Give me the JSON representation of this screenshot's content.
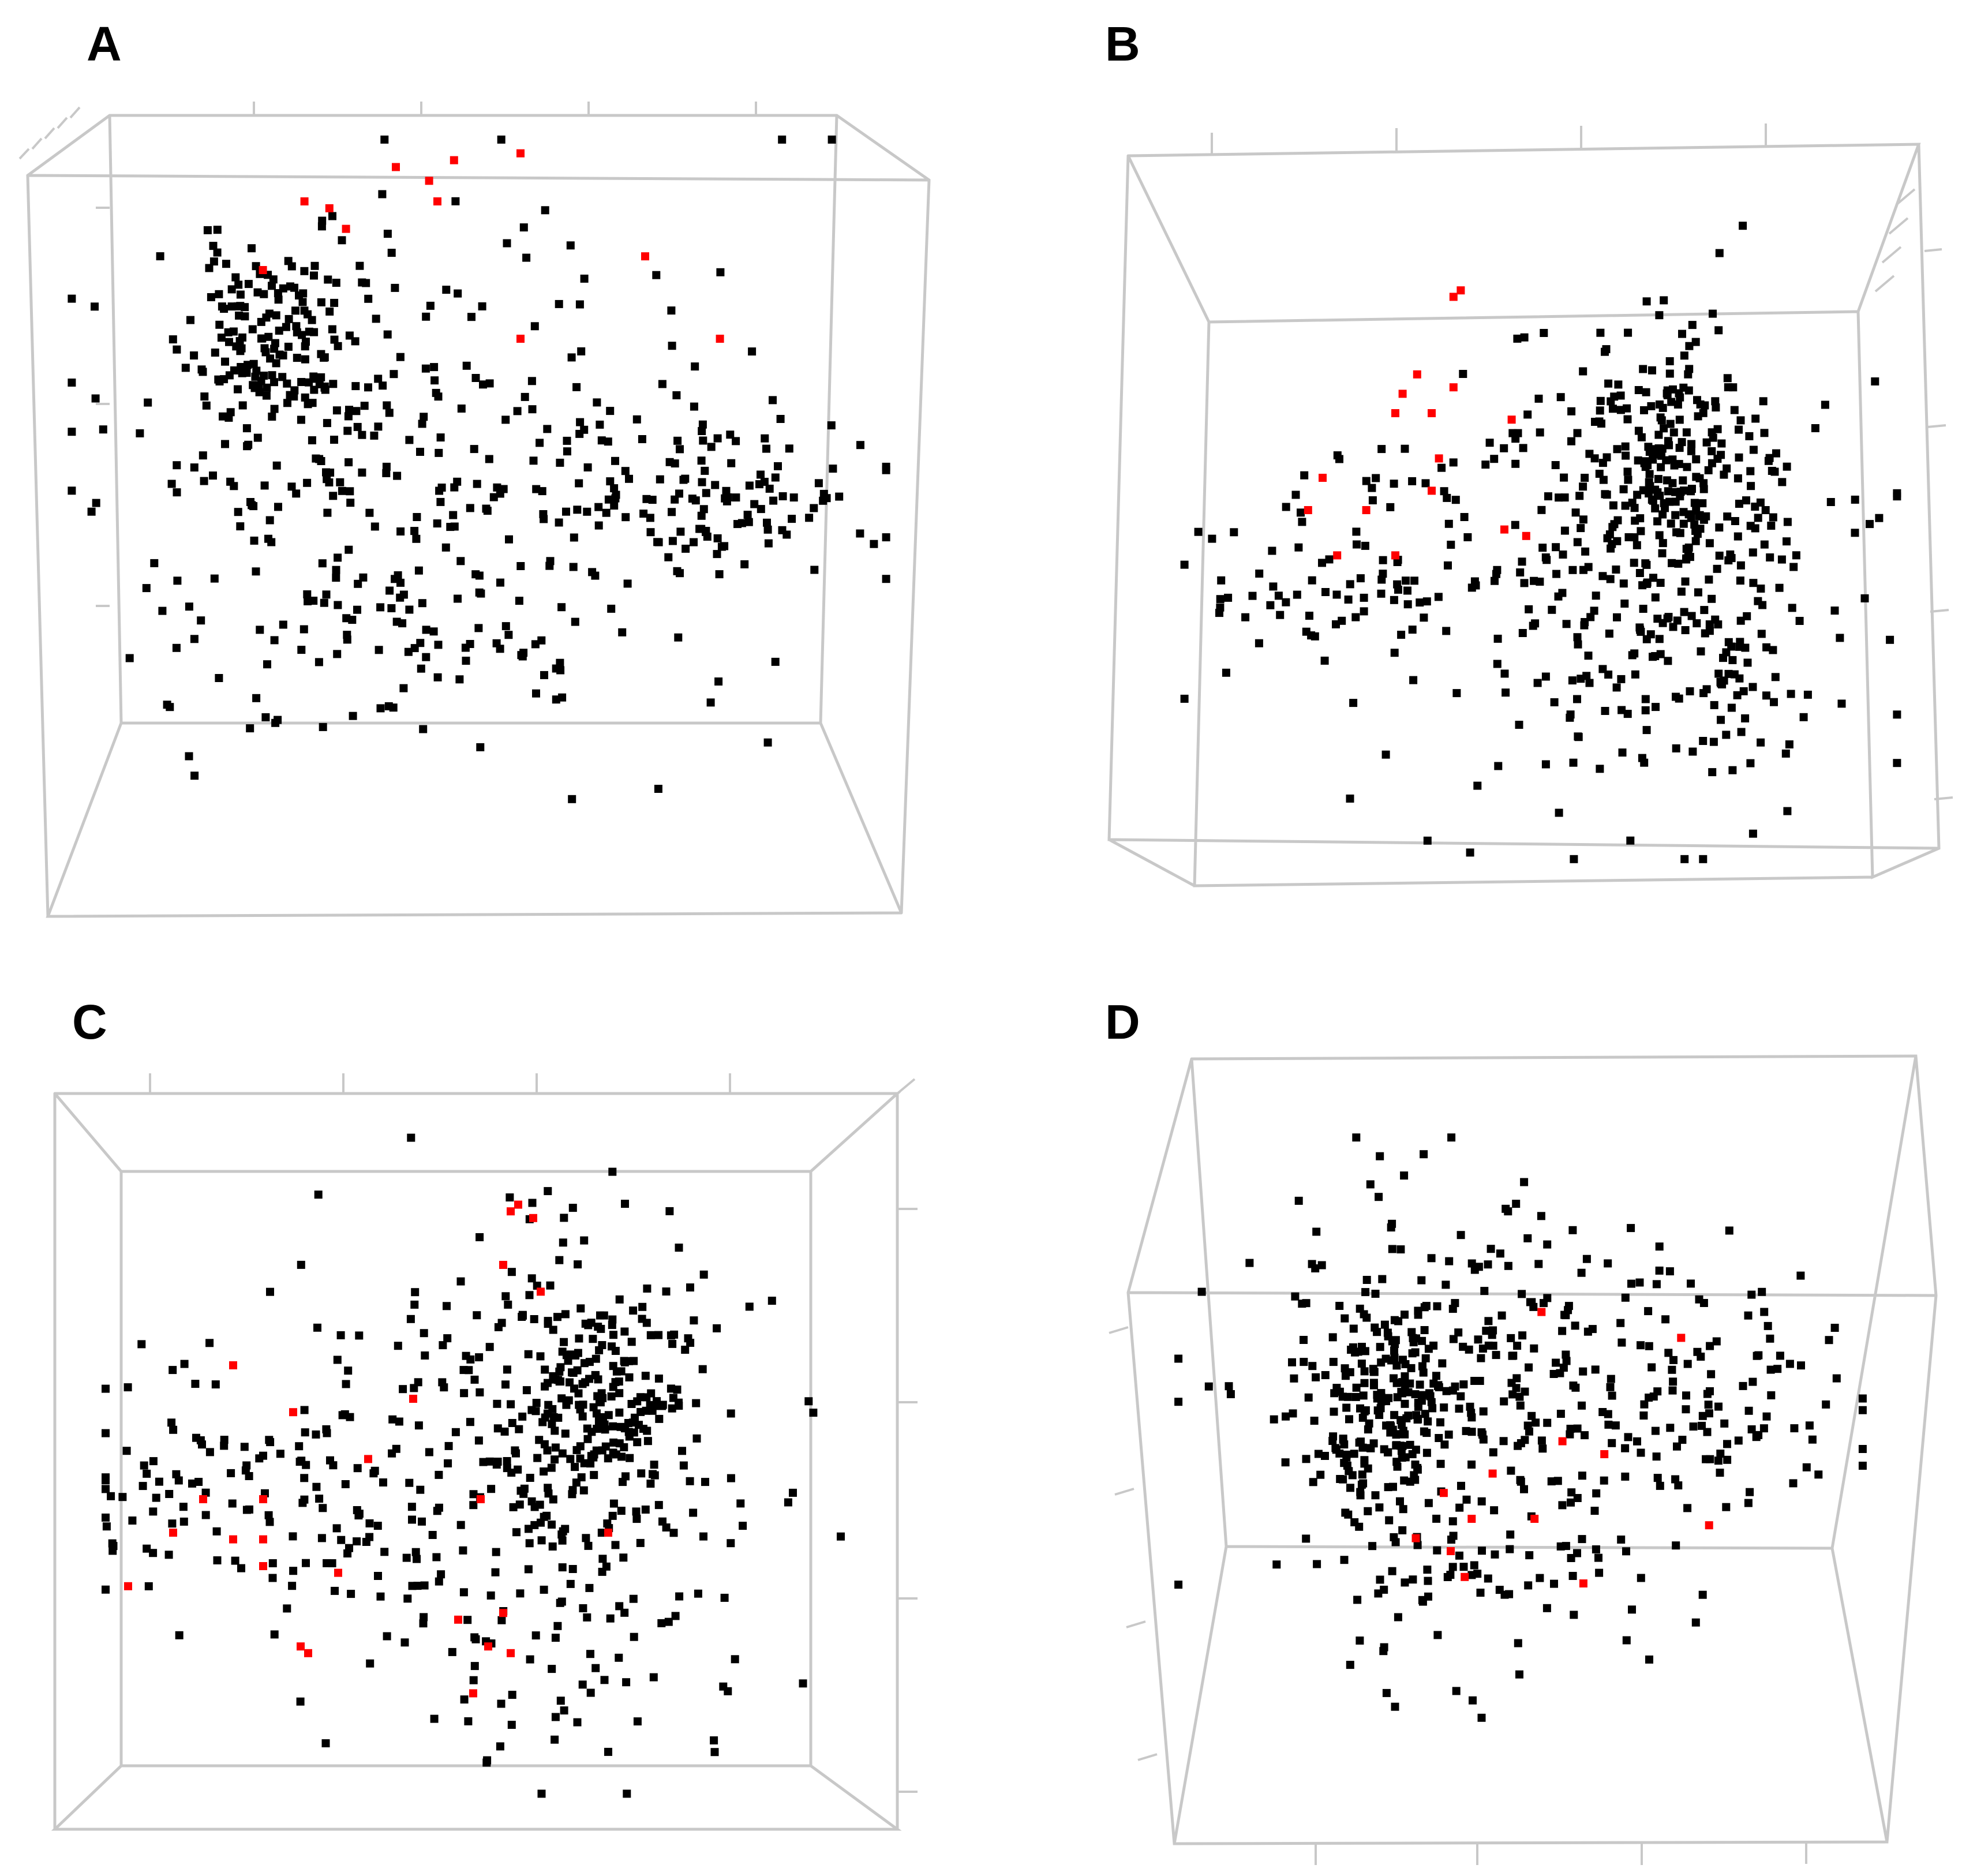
{
  "figure": {
    "colors": {
      "frame": "#c8c8c8",
      "point": "#000000",
      "highlight": "#ff0000"
    }
  },
  "chart_data": [
    {
      "type": "scatter",
      "panel": "A",
      "title": "",
      "xlabel": "",
      "ylabel": "",
      "zlabel": "",
      "grid": false,
      "legend": "none",
      "xlim": [
        0,
        100
      ],
      "ylim": [
        0,
        100
      ],
      "series": [
        {
          "color": "#000000",
          "seed": 11,
          "count": 600,
          "clusters": [
            {
              "x": 25,
              "y": 70,
              "sx": 5,
              "sy": 7,
              "n": 160
            },
            {
              "x": 45,
              "y": 50,
              "sx": 20,
              "sy": 18,
              "n": 300
            },
            {
              "x": 80,
              "y": 47,
              "sx": 10,
              "sy": 6,
              "n": 90
            },
            {
              "x": 35,
              "y": 28,
              "sx": 15,
              "sy": 6,
              "n": 50
            }
          ]
        },
        {
          "color": "#ff0000",
          "points": [
            [
              40,
              95
            ],
            [
              47,
              96
            ],
            [
              55,
              97
            ],
            [
              44,
              93
            ],
            [
              29,
              90
            ],
            [
              32,
              89
            ],
            [
              45,
              90
            ],
            [
              34,
              86
            ],
            [
              24,
              80
            ],
            [
              70,
              82
            ],
            [
              55,
              70
            ],
            [
              79,
              70
            ]
          ]
        }
      ]
    },
    {
      "type": "scatter",
      "panel": "B",
      "title": "",
      "xlabel": "",
      "ylabel": "",
      "zlabel": "",
      "grid": false,
      "legend": "none",
      "xlim": [
        0,
        100
      ],
      "ylim": [
        0,
        100
      ],
      "series": [
        {
          "color": "#000000",
          "seed": 23,
          "count": 600,
          "clusters": [
            {
              "x": 67,
              "y": 62,
              "sx": 6,
              "sy": 10,
              "n": 180
            },
            {
              "x": 62,
              "y": 45,
              "sx": 14,
              "sy": 18,
              "n": 280
            },
            {
              "x": 25,
              "y": 45,
              "sx": 12,
              "sy": 8,
              "n": 90
            },
            {
              "x": 75,
              "y": 30,
              "sx": 8,
              "sy": 8,
              "n": 50
            }
          ]
        },
        {
          "color": "#ff0000",
          "points": [
            [
              38,
              88
            ],
            [
              39,
              89
            ],
            [
              33,
              76
            ],
            [
              31,
              73
            ],
            [
              30,
              70
            ],
            [
              35,
              70
            ],
            [
              38,
              74
            ],
            [
              46,
              69
            ],
            [
              36,
              63
            ],
            [
              20,
              60
            ],
            [
              35,
              58
            ],
            [
              45,
              52
            ],
            [
              18,
              55
            ],
            [
              26,
              55
            ],
            [
              22,
              48
            ],
            [
              30,
              48
            ],
            [
              48,
              51
            ]
          ]
        }
      ]
    },
    {
      "type": "scatter",
      "panel": "C",
      "title": "",
      "xlabel": "",
      "ylabel": "",
      "zlabel": "",
      "grid": false,
      "legend": "none",
      "xlim": [
        0,
        100
      ],
      "ylim": [
        0,
        100
      ],
      "series": [
        {
          "color": "#000000",
          "seed": 37,
          "count": 600,
          "clusters": [
            {
              "x": 67,
              "y": 60,
              "sx": 6,
              "sy": 10,
              "n": 190
            },
            {
              "x": 55,
              "y": 50,
              "sx": 17,
              "sy": 18,
              "n": 280
            },
            {
              "x": 18,
              "y": 45,
              "sx": 12,
              "sy": 8,
              "n": 90
            },
            {
              "x": 62,
              "y": 22,
              "sx": 10,
              "sy": 9,
              "n": 40
            }
          ]
        },
        {
          "color": "#ff0000",
          "points": [
            [
              55,
              88
            ],
            [
              56,
              89
            ],
            [
              58,
              87
            ],
            [
              54,
              80
            ],
            [
              59,
              76
            ],
            [
              18,
              65
            ],
            [
              26,
              58
            ],
            [
              42,
              60
            ],
            [
              36,
              51
            ],
            [
              22,
              45
            ],
            [
              14,
              45
            ],
            [
              10,
              40
            ],
            [
              18,
              39
            ],
            [
              22,
              39
            ],
            [
              4,
              32
            ],
            [
              22,
              35
            ],
            [
              32,
              34
            ],
            [
              27,
              23
            ],
            [
              28,
              22
            ],
            [
              51,
              45
            ],
            [
              68,
              40
            ],
            [
              48,
              27
            ],
            [
              54,
              28
            ],
            [
              52,
              23
            ],
            [
              55,
              22
            ],
            [
              50,
              16
            ]
          ]
        }
      ]
    },
    {
      "type": "scatter",
      "panel": "D",
      "title": "",
      "xlabel": "",
      "ylabel": "",
      "zlabel": "",
      "grid": false,
      "legend": "none",
      "xlim": [
        0,
        100
      ],
      "ylim": [
        0,
        100
      ],
      "series": [
        {
          "color": "#000000",
          "seed": 51,
          "count": 600,
          "clusters": [
            {
              "x": 30,
              "y": 55,
              "sx": 5,
              "sy": 8,
              "n": 180
            },
            {
              "x": 45,
              "y": 62,
              "sx": 18,
              "sy": 14,
              "n": 260
            },
            {
              "x": 82,
              "y": 58,
              "sx": 10,
              "sy": 8,
              "n": 80
            },
            {
              "x": 45,
              "y": 30,
              "sx": 12,
              "sy": 10,
              "n": 80
            }
          ]
        },
        {
          "color": "#ff0000",
          "points": [
            [
              53,
              72
            ],
            [
              73,
              68
            ],
            [
              56,
              52
            ],
            [
              62,
              50
            ],
            [
              46,
              47
            ],
            [
              39,
              44
            ],
            [
              43,
              40
            ],
            [
              52,
              40
            ],
            [
              35,
              37
            ],
            [
              40,
              35
            ],
            [
              42,
              31
            ],
            [
              59,
              30
            ],
            [
              77,
              39
            ]
          ]
        }
      ]
    }
  ],
  "panel_labels": [
    "A",
    "B",
    "C",
    "D"
  ]
}
